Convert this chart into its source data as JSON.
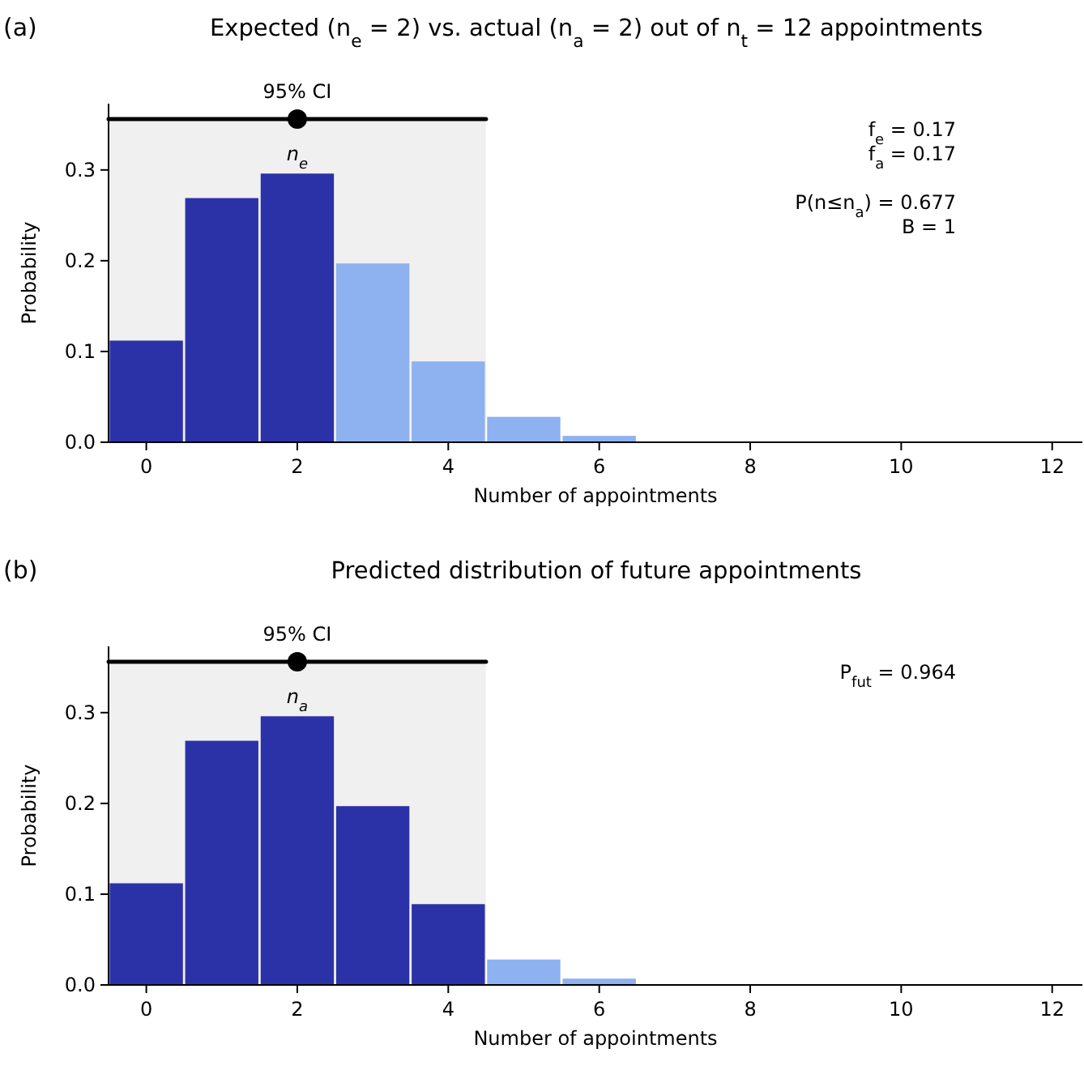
{
  "chart_data": [
    {
      "type": "bar",
      "title": "Expected (n$_{e}$ = 2) vs. actual (n$_{a}$ = 2) out of n$_{t}$ = 12 appointments",
      "xlabel": "Number of appointments",
      "ylabel": "Probability",
      "x": [
        0,
        1,
        2,
        3,
        4,
        5,
        6,
        7,
        8,
        9,
        10,
        11,
        12
      ],
      "series": [
        {
          "values": [
            0.112,
            0.269,
            0.296,
            0.197,
            0.089,
            0.028,
            0.007,
            0,
            0,
            0,
            0,
            0,
            0
          ],
          "colors": [
            "#2b32a8",
            "#2b32a8",
            "#2b32a8",
            "#8eb1ef",
            "#8eb1ef",
            "#8eb1ef",
            "#8eb1ef",
            "#8eb1ef",
            "#8eb1ef",
            "#8eb1ef",
            "#8eb1ef",
            "#8eb1ef",
            "#8eb1ef"
          ]
        },
        {
          "type": "line",
          "x": [
            -0.5,
            4.5
          ],
          "values": [
            0.356,
            0.356
          ],
          "color": "#000000"
        },
        {
          "type": "scatter",
          "x": [
            2
          ],
          "values": [
            0.356
          ],
          "color": "#000000",
          "marker": "circle"
        }
      ],
      "bands": [
        {
          "axis": "x",
          "from": -0.5,
          "to": 4.5,
          "label": "95% CI",
          "color": "#f0f0f0"
        }
      ],
      "annotations": [
        "(a)",
        {
          "text": "n$_{e}$",
          "x": 2,
          "y": 0.296
        },
        "f$_{e}$ = 0.17",
        "f$_{a}$ = 0.17",
        "P(n≤n$_{a}$) = 0.677",
        "B = 1"
      ],
      "xlim": [
        -0.5,
        12.4
      ],
      "xticks": [
        0,
        2,
        4,
        6,
        8,
        10,
        12
      ],
      "ylim": [
        0,
        0.373
      ],
      "yticks": [
        {
          "value": 0,
          "label": "0.0"
        },
        0.1,
        0.2,
        0.3
      ]
    },
    {
      "type": "bar",
      "title": "Predicted distribution of future appointments",
      "xlabel": "Number of appointments",
      "ylabel": "Probability",
      "x": [
        0,
        1,
        2,
        3,
        4,
        5,
        6,
        7,
        8,
        9,
        10,
        11,
        12
      ],
      "series": [
        {
          "values": [
            0.112,
            0.269,
            0.296,
            0.197,
            0.089,
            0.028,
            0.007,
            0,
            0,
            0,
            0,
            0,
            0
          ],
          "colors": [
            "#2b32a8",
            "#2b32a8",
            "#2b32a8",
            "#2b32a8",
            "#2b32a8",
            "#8eb1ef",
            "#8eb1ef",
            "#8eb1ef",
            "#8eb1ef",
            "#8eb1ef",
            "#8eb1ef",
            "#8eb1ef",
            "#8eb1ef"
          ]
        },
        {
          "type": "line",
          "x": [
            -0.5,
            4.5
          ],
          "values": [
            0.356,
            0.356
          ],
          "color": "#000000"
        },
        {
          "type": "scatter",
          "x": [
            2
          ],
          "values": [
            0.356
          ],
          "color": "#000000",
          "marker": "circle"
        }
      ],
      "bands": [
        {
          "axis": "x",
          "from": -0.5,
          "to": 4.5,
          "label": "95% CI",
          "color": "#f0f0f0"
        }
      ],
      "annotations": [
        "(b)",
        {
          "text": "n$_{a}$",
          "x": 2,
          "y": 0.296
        },
        "P$_{fut}$ = 0.964"
      ],
      "xlim": [
        -0.5,
        12.4
      ],
      "xticks": [
        0,
        2,
        4,
        6,
        8,
        10,
        12
      ],
      "ylim": [
        0,
        0.373
      ],
      "yticks": [
        {
          "value": 0,
          "label": "0.0"
        },
        0.1,
        0.2,
        0.3
      ]
    }
  ]
}
